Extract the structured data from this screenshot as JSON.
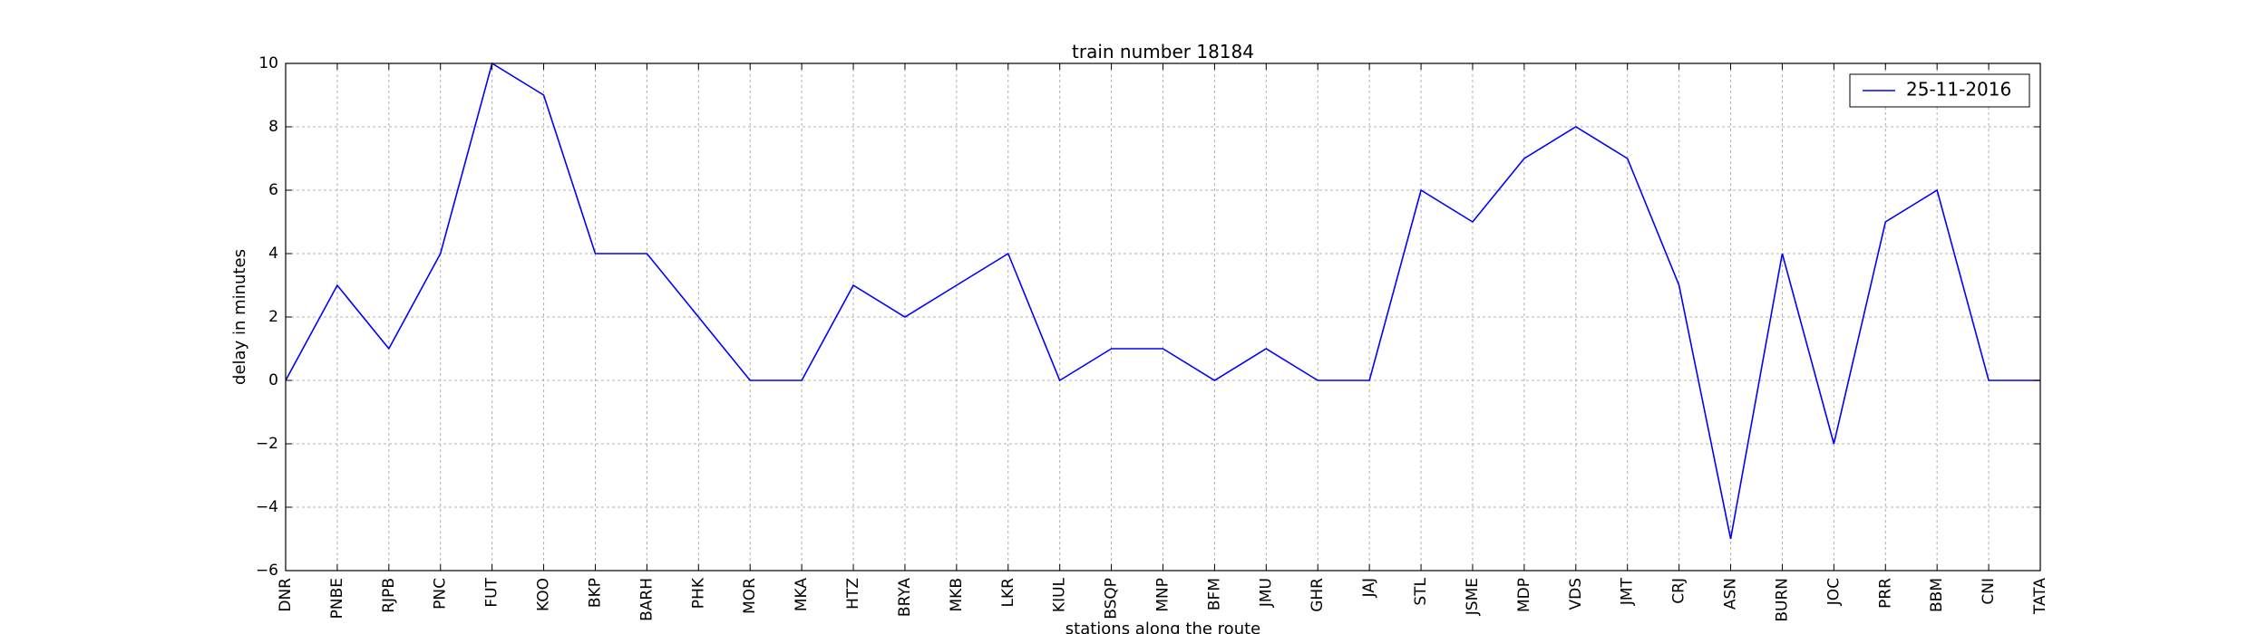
{
  "chart_data": {
    "type": "line",
    "title": "train number 18184",
    "xlabel": "stations along the route",
    "ylabel": "delay in minutes",
    "categories": [
      "DNR",
      "PNBE",
      "RJPB",
      "PNC",
      "FUT",
      "KOO",
      "BKP",
      "BARH",
      "PHK",
      "MOR",
      "MKA",
      "HTZ",
      "BRYA",
      "MKB",
      "LKR",
      "KIUL",
      "BSQP",
      "MNP",
      "BFM",
      "JMU",
      "GHR",
      "JAJ",
      "STL",
      "JSME",
      "MDP",
      "VDS",
      "JMT",
      "CRJ",
      "ASN",
      "BURN",
      "JOC",
      "PRR",
      "BBM",
      "CNI",
      "TATA"
    ],
    "series": [
      {
        "name": "25-11-2016",
        "color": "#0000ff",
        "values": [
          0,
          3,
          1,
          4,
          10,
          9,
          4,
          4,
          2,
          0,
          0,
          3,
          2,
          3,
          4,
          0,
          1,
          1,
          0,
          1,
          0,
          0,
          6,
          5,
          7,
          8,
          7,
          3,
          -5,
          4,
          -2,
          5,
          6,
          0,
          0
        ]
      }
    ],
    "ylim": [
      -6,
      10
    ],
    "yticks": [
      -6,
      -4,
      -2,
      0,
      2,
      4,
      6,
      8,
      10
    ],
    "grid": true,
    "legend_position": "top-right"
  }
}
